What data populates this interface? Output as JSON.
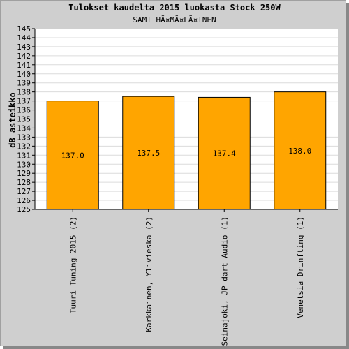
{
  "chart_data": {
    "type": "bar",
    "title": "Tulokset kaudelta 2015 luokasta Stock 250W",
    "subtitle": "SAMI HÃ¤MÃ¤LÃ¤INEN",
    "ylabel": "dB asteikko",
    "xlabel": "",
    "ylim": [
      125,
      145
    ],
    "ytick_step": 1,
    "grid": true,
    "categories": [
      "Tuuri_Tuning_2015 (2)",
      "Karkkainen, Ylivieska (2)",
      "Seinajoki, JP dart Audio (1)",
      "Venetsia Drinfting (1)"
    ],
    "values": [
      137.0,
      137.5,
      137.4,
      138.0
    ],
    "value_labels": [
      "137.0",
      "137.5",
      "137.4",
      "138.0"
    ]
  },
  "colors": {
    "bar": "#ffa500",
    "plot_bg": "#ffffff",
    "frame_bg": "#cfcfcf",
    "grid": "#dcdcdc"
  }
}
